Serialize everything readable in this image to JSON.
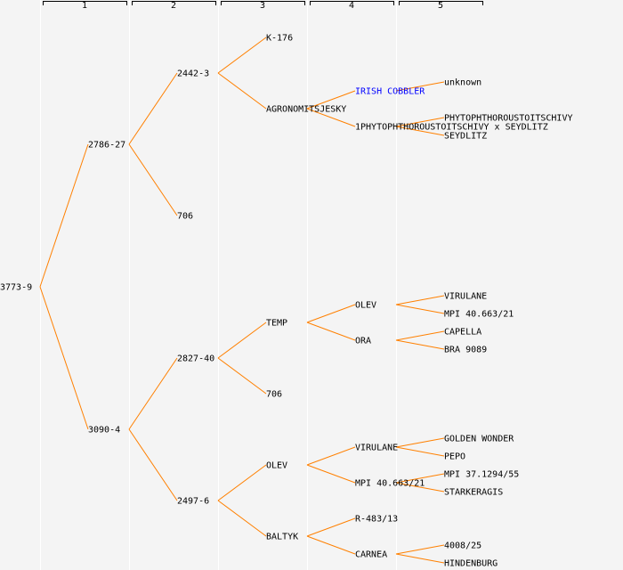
{
  "columns": [
    "1",
    "2",
    "3",
    "4",
    "5"
  ],
  "colors": {
    "line": "#ff8000",
    "text": "#000000",
    "highlight": "#0000ff",
    "separator": "#ffffff",
    "background": "#f4f4f4"
  },
  "nodes": [
    {
      "gen": 0,
      "index": 0,
      "label": "3773-9"
    },
    {
      "gen": 1,
      "index": 0,
      "label": "2786-27"
    },
    {
      "gen": 1,
      "index": 1,
      "label": "3090-4"
    },
    {
      "gen": 2,
      "index": 0,
      "label": "2442-3"
    },
    {
      "gen": 2,
      "index": 1,
      "label": "706"
    },
    {
      "gen": 2,
      "index": 2,
      "label": "2827-40"
    },
    {
      "gen": 2,
      "index": 3,
      "label": "2497-6"
    },
    {
      "gen": 3,
      "index": 0,
      "label": "K-176"
    },
    {
      "gen": 3,
      "index": 1,
      "label": "AGRONOMITSJESKY"
    },
    {
      "gen": 3,
      "index": 4,
      "label": "TEMP"
    },
    {
      "gen": 3,
      "index": 5,
      "label": "706"
    },
    {
      "gen": 3,
      "index": 6,
      "label": "OLEV"
    },
    {
      "gen": 3,
      "index": 7,
      "label": "BALTYK"
    },
    {
      "gen": 4,
      "index": 2,
      "label": "IRISH COBBLER",
      "highlight": true
    },
    {
      "gen": 4,
      "index": 3,
      "label": "1PHYTOPHTHOROUSTOITSCHIVY x SEYDLITZ"
    },
    {
      "gen": 4,
      "index": 8,
      "label": "OLEV"
    },
    {
      "gen": 4,
      "index": 9,
      "label": "ORA"
    },
    {
      "gen": 4,
      "index": 12,
      "label": "VIRULANE"
    },
    {
      "gen": 4,
      "index": 13,
      "label": "MPI 40.663/21"
    },
    {
      "gen": 4,
      "index": 14,
      "label": "R-483/13"
    },
    {
      "gen": 4,
      "index": 15,
      "label": "CARNEA"
    },
    {
      "gen": 5,
      "index": 4,
      "label": "unknown"
    },
    {
      "gen": 5,
      "index": 6,
      "label": "PHYTOPHTHOROUSTOITSCHIVY"
    },
    {
      "gen": 5,
      "index": 7,
      "label": "SEYDLITZ"
    },
    {
      "gen": 5,
      "index": 16,
      "label": "VIRULANE"
    },
    {
      "gen": 5,
      "index": 17,
      "label": "MPI 40.663/21"
    },
    {
      "gen": 5,
      "index": 18,
      "label": "CAPELLA"
    },
    {
      "gen": 5,
      "index": 19,
      "label": "BRA 9089"
    },
    {
      "gen": 5,
      "index": 24,
      "label": "GOLDEN WONDER"
    },
    {
      "gen": 5,
      "index": 25,
      "label": "PEPO"
    },
    {
      "gen": 5,
      "index": 26,
      "label": "MPI 37.1294/55"
    },
    {
      "gen": 5,
      "index": 27,
      "label": "STARKERAGIS"
    },
    {
      "gen": 5,
      "index": 30,
      "label": "4008/25"
    },
    {
      "gen": 5,
      "index": 31,
      "label": "HINDENBURG"
    }
  ]
}
